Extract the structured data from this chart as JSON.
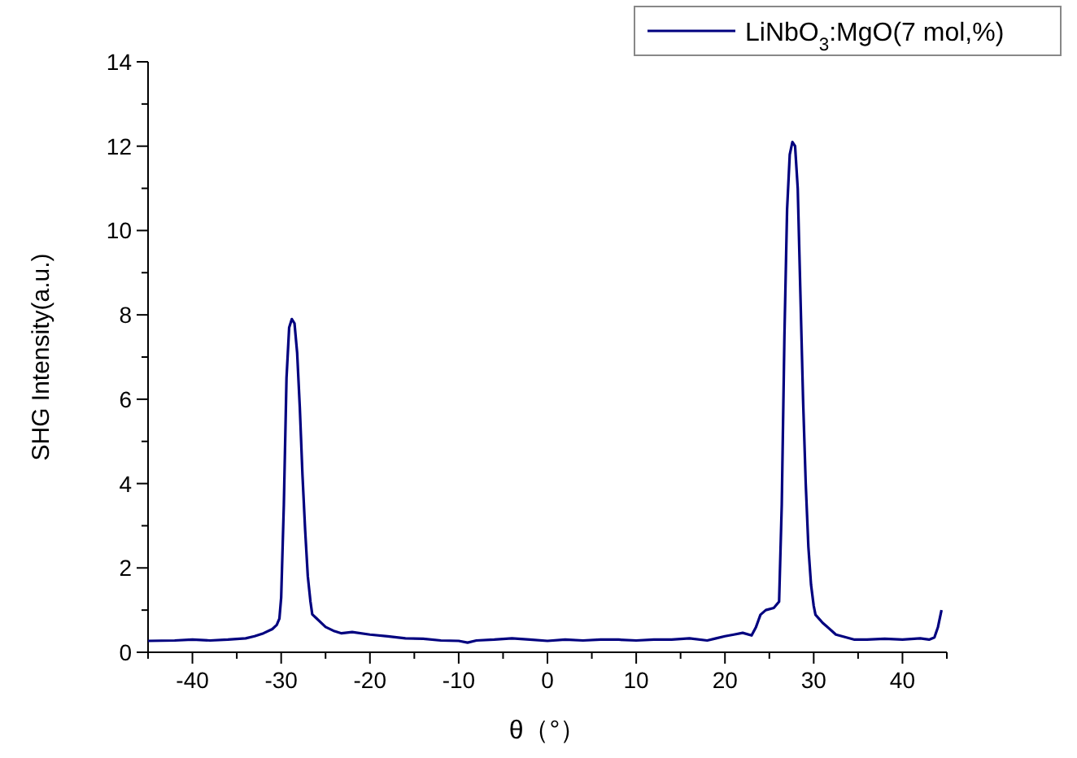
{
  "chart_data": {
    "type": "line",
    "xlabel": "θ（°）",
    "ylabel": "SHG Intensity(a.u.)",
    "x": [
      -45,
      -42,
      -40,
      -38,
      -36,
      -34,
      -33,
      -32,
      -31,
      -30.5,
      -30.2,
      -30,
      -29.7,
      -29.4,
      -29.1,
      -28.8,
      -28.5,
      -28.2,
      -27.9,
      -27.6,
      -27.3,
      -27,
      -26.7,
      -26.5,
      -26,
      -25,
      -24,
      -23.2,
      -22,
      -20,
      -18,
      -16,
      -14,
      -12,
      -10,
      -9,
      -8,
      -6,
      -4,
      -2,
      0,
      2,
      4,
      6,
      8,
      10,
      12,
      14,
      16,
      18,
      19,
      20,
      21,
      22,
      23,
      23.5,
      24,
      24.6,
      25.5,
      26.1,
      26.4,
      26.7,
      27,
      27.3,
      27.6,
      27.9,
      28.2,
      28.5,
      28.8,
      29.1,
      29.4,
      29.7,
      30,
      30.2,
      31,
      32.5,
      34.6,
      36,
      38,
      40,
      42,
      43,
      43.6,
      44,
      44.4
    ],
    "series": [
      {
        "name": "LiNbO$_{3}$:MgO(7 mol,%)",
        "color": "#00007f",
        "values": [
          0.27,
          0.28,
          0.3,
          0.28,
          0.3,
          0.33,
          0.38,
          0.45,
          0.55,
          0.65,
          0.8,
          1.3,
          3.5,
          6.5,
          7.7,
          7.9,
          7.8,
          7.1,
          5.8,
          4.2,
          2.9,
          1.8,
          1.2,
          0.9,
          0.8,
          0.6,
          0.5,
          0.45,
          0.48,
          0.42,
          0.38,
          0.33,
          0.32,
          0.28,
          0.27,
          0.23,
          0.28,
          0.3,
          0.33,
          0.3,
          0.27,
          0.3,
          0.28,
          0.3,
          0.3,
          0.28,
          0.3,
          0.3,
          0.33,
          0.28,
          0.33,
          0.38,
          0.42,
          0.46,
          0.4,
          0.6,
          0.89,
          1.0,
          1.05,
          1.2,
          3.5,
          7.5,
          10.5,
          11.8,
          12.1,
          12.0,
          11.0,
          8.5,
          6.0,
          4.0,
          2.5,
          1.6,
          1.1,
          0.89,
          0.7,
          0.42,
          0.3,
          0.3,
          0.32,
          0.3,
          0.33,
          0.3,
          0.35,
          0.6,
          1.0
        ]
      }
    ],
    "xlim": [
      -45,
      45
    ],
    "xticks": [
      {
        "value": -45,
        "label": null
      },
      -40,
      {
        "value": -35,
        "label": null
      },
      -30,
      {
        "value": -25,
        "label": null
      },
      -20,
      {
        "value": -15,
        "label": null
      },
      -10,
      {
        "value": -5,
        "label": null
      },
      0,
      {
        "value": 5,
        "label": null
      },
      10,
      {
        "value": 15,
        "label": null
      },
      20,
      {
        "value": 25,
        "label": null
      },
      30,
      {
        "value": 35,
        "label": null
      },
      40,
      {
        "value": 45,
        "label": null
      }
    ],
    "ylim": [
      0,
      14
    ],
    "yticks": [
      0,
      {
        "value": 1,
        "label": null
      },
      2,
      {
        "value": 3,
        "label": null
      },
      4,
      {
        "value": 5,
        "label": null
      },
      6,
      {
        "value": 7,
        "label": null
      },
      8,
      {
        "value": 9,
        "label": null
      },
      10,
      {
        "value": 11,
        "label": null
      },
      12,
      {
        "value": 13,
        "label": null
      },
      14
    ],
    "grid": false,
    "legend": "top right",
    "marker": "none",
    "line_style": "solid"
  }
}
